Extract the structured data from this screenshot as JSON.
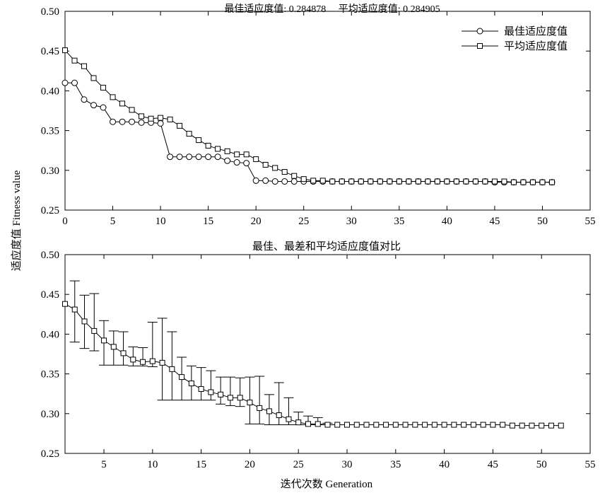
{
  "figure": {
    "ylabel": "适应度值 Fitness value",
    "xlabel": "迭代次数 Generation"
  },
  "chart_data": [
    {
      "type": "line",
      "title": "最佳适应度值: 0.284878     平均适应度值: 0.284905",
      "xlim": [
        0,
        55
      ],
      "ylim": [
        0.25,
        0.5
      ],
      "xticks": [
        0,
        5,
        10,
        15,
        20,
        25,
        30,
        35,
        40,
        45,
        50,
        55
      ],
      "yticks": [
        "0.25",
        "0.30",
        "0.35",
        "0.40",
        "0.45",
        "0.50"
      ],
      "legend_position": "top-right",
      "x": [
        0,
        1,
        2,
        3,
        4,
        5,
        6,
        7,
        8,
        9,
        10,
        11,
        12,
        13,
        14,
        15,
        16,
        17,
        18,
        19,
        20,
        21,
        22,
        23,
        24,
        25,
        26,
        27,
        28,
        29,
        30,
        31,
        32,
        33,
        34,
        35,
        36,
        37,
        38,
        39,
        40,
        41,
        42,
        43,
        44,
        45,
        46,
        47,
        48,
        49,
        50,
        51
      ],
      "series": [
        {
          "name": "最佳适应度值",
          "marker": "circle",
          "values": [
            0.41,
            0.41,
            0.389,
            0.382,
            0.379,
            0.361,
            0.361,
            0.361,
            0.36,
            0.36,
            0.359,
            0.317,
            0.317,
            0.317,
            0.317,
            0.317,
            0.317,
            0.312,
            0.31,
            0.309,
            0.287,
            0.287,
            0.286,
            0.286,
            0.286,
            0.286,
            0.286,
            0.286,
            0.286,
            0.286,
            0.286,
            0.286,
            0.286,
            0.286,
            0.286,
            0.286,
            0.286,
            0.286,
            0.286,
            0.286,
            0.286,
            0.286,
            0.286,
            0.286,
            0.286,
            0.285,
            0.285,
            0.285,
            0.285,
            0.285,
            0.285,
            0.285
          ]
        },
        {
          "name": "平均适应度值",
          "marker": "square",
          "values": [
            0.451,
            0.438,
            0.431,
            0.416,
            0.404,
            0.392,
            0.384,
            0.376,
            0.368,
            0.365,
            0.366,
            0.364,
            0.356,
            0.346,
            0.338,
            0.331,
            0.327,
            0.324,
            0.32,
            0.32,
            0.314,
            0.307,
            0.303,
            0.298,
            0.293,
            0.289,
            0.287,
            0.287,
            0.286,
            0.286,
            0.286,
            0.286,
            0.286,
            0.286,
            0.286,
            0.286,
            0.286,
            0.286,
            0.286,
            0.286,
            0.286,
            0.286,
            0.286,
            0.286,
            0.286,
            0.286,
            0.286,
            0.285,
            0.285,
            0.285,
            0.285,
            0.285
          ]
        }
      ]
    },
    {
      "type": "line",
      "title": "最佳、最差和平均适应度值对比",
      "xlim": [
        1,
        55
      ],
      "ylim": [
        0.25,
        0.5
      ],
      "xticks": [
        5,
        10,
        15,
        20,
        25,
        30,
        35,
        40,
        45,
        50,
        55
      ],
      "yticks": [
        "0.25",
        "0.30",
        "0.35",
        "0.40",
        "0.45",
        "0.50"
      ],
      "x": [
        1,
        2,
        3,
        4,
        5,
        6,
        7,
        8,
        9,
        10,
        11,
        12,
        13,
        14,
        15,
        16,
        17,
        18,
        19,
        20,
        21,
        22,
        23,
        24,
        25,
        26,
        27,
        28,
        29,
        30,
        31,
        32,
        33,
        34,
        35,
        36,
        37,
        38,
        39,
        40,
        41,
        42,
        43,
        44,
        45,
        46,
        47,
        48,
        49,
        50,
        51,
        52
      ],
      "series": [
        {
          "marker": "square",
          "values": [
            0.438,
            0.431,
            0.416,
            0.404,
            0.392,
            0.384,
            0.376,
            0.368,
            0.365,
            0.366,
            0.364,
            0.356,
            0.346,
            0.338,
            0.331,
            0.327,
            0.324,
            0.32,
            0.32,
            0.314,
            0.307,
            0.303,
            0.298,
            0.293,
            0.289,
            0.287,
            0.287,
            0.286,
            0.286,
            0.286,
            0.286,
            0.286,
            0.286,
            0.286,
            0.286,
            0.286,
            0.286,
            0.286,
            0.286,
            0.286,
            0.286,
            0.286,
            0.286,
            0.286,
            0.286,
            0.286,
            0.285,
            0.285,
            0.285,
            0.285,
            0.285,
            0.285
          ]
        }
      ],
      "error_bars": {
        "x": [
          2,
          3,
          4,
          5,
          6,
          7,
          8,
          9,
          10,
          11,
          12,
          13,
          14,
          15,
          16,
          17,
          18,
          19,
          20,
          21,
          22,
          23,
          24,
          25,
          26,
          27,
          28
        ],
        "high": [
          0.467,
          0.449,
          0.451,
          0.417,
          0.404,
          0.403,
          0.384,
          0.383,
          0.415,
          0.42,
          0.403,
          0.371,
          0.36,
          0.358,
          0.354,
          0.346,
          0.346,
          0.345,
          0.346,
          0.347,
          0.324,
          0.339,
          0.32,
          0.302,
          0.297,
          0.295,
          0.288
        ],
        "low": [
          0.39,
          0.382,
          0.379,
          0.361,
          0.361,
          0.361,
          0.36,
          0.36,
          0.359,
          0.317,
          0.317,
          0.317,
          0.317,
          0.317,
          0.317,
          0.312,
          0.31,
          0.309,
          0.287,
          0.287,
          0.286,
          0.286,
          0.286,
          0.286,
          0.286,
          0.286,
          0.286
        ]
      }
    }
  ]
}
